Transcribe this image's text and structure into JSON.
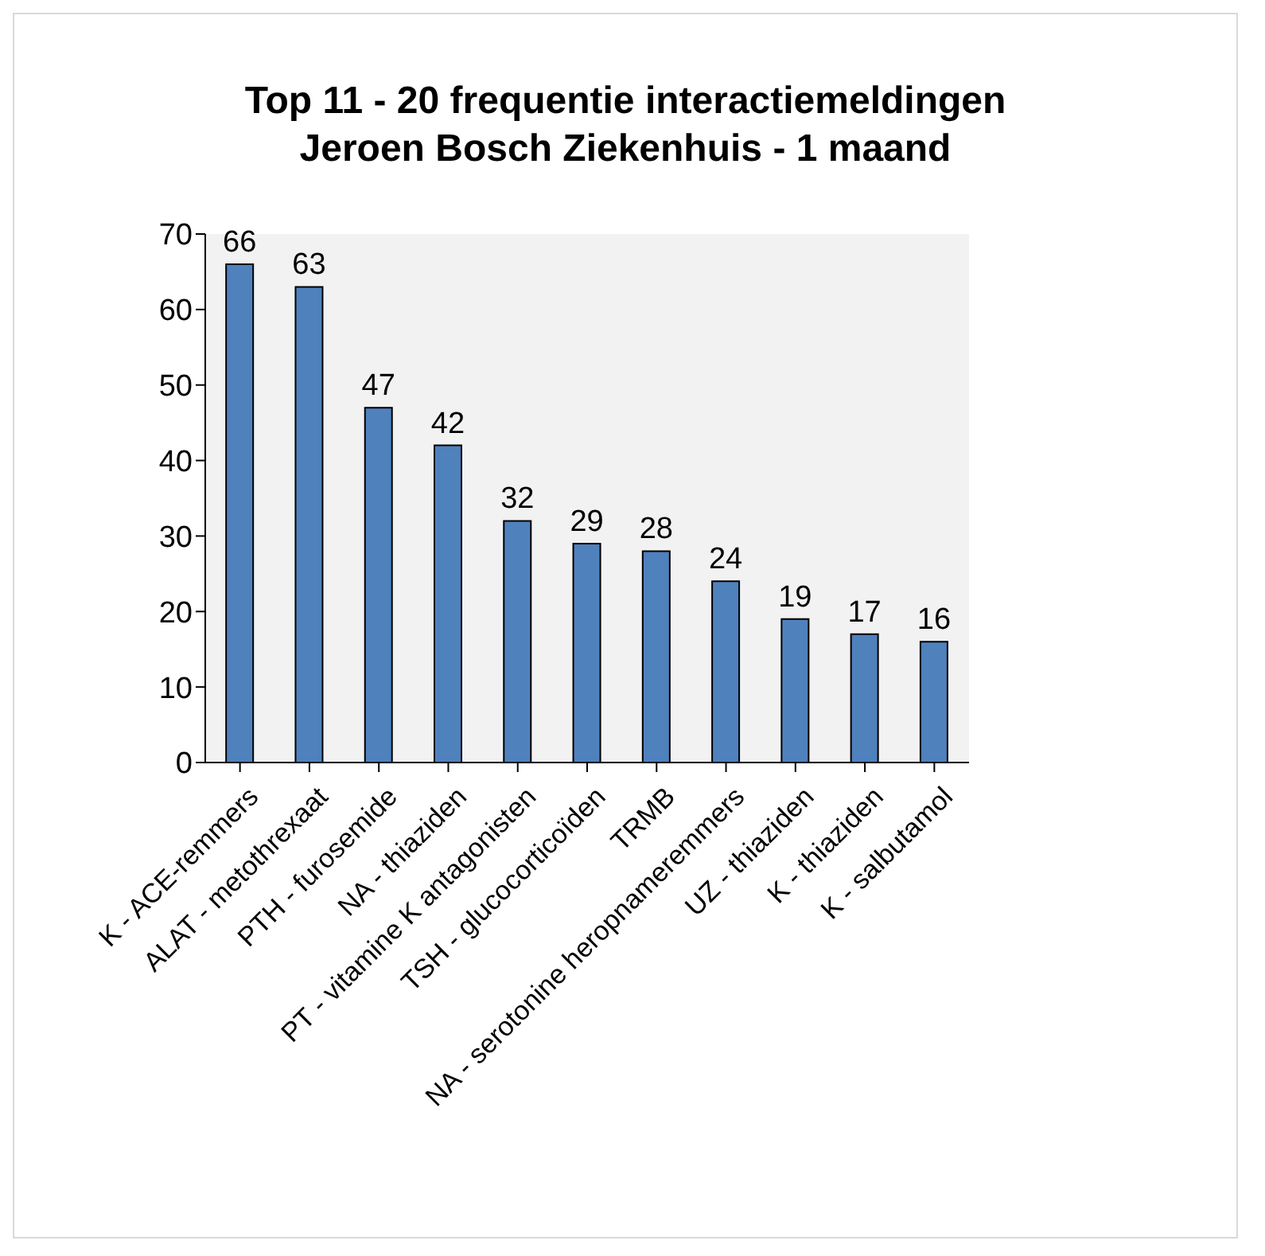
{
  "chart_data": {
    "type": "bar",
    "title": "Top 11 - 20 frequentie interactiemeldingen",
    "subtitle": "Jeroen Bosch Ziekenhuis - 1 maand",
    "categories": [
      "K - ACE-remmers",
      "ALAT - metothrexaat",
      "PTH - furosemide",
      "NA - thiaziden",
      "PT - vitamine K antagonisten",
      "TSH - glucocorticoïden",
      "TRMB",
      "NA - serotonine heropnameremmers",
      "UZ - thiaziden",
      "K - thiaziden",
      "K - salbutamol"
    ],
    "values": [
      66,
      63,
      47,
      42,
      32,
      29,
      28,
      24,
      19,
      17,
      16
    ],
    "color": "#4f81bd",
    "ylim": [
      0,
      70
    ],
    "yticks": [
      0,
      10,
      20,
      30,
      40,
      50,
      60,
      70
    ],
    "data_labels": true
  }
}
